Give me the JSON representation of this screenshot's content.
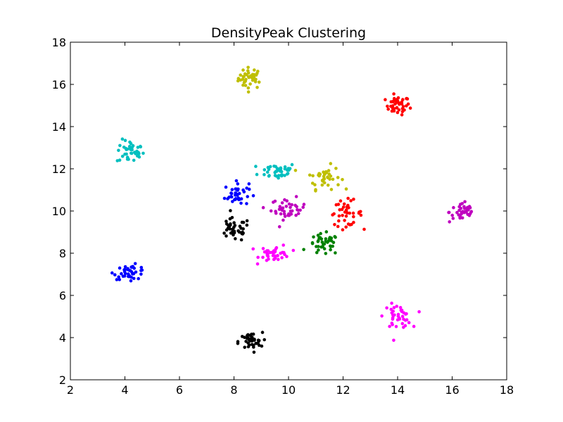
{
  "chart_data": {
    "type": "scatter",
    "title": "DensityPeak Clustering",
    "xlabel": "",
    "ylabel": "",
    "xlim": [
      2,
      18
    ],
    "ylim": [
      2,
      18
    ],
    "xticks": [
      "2",
      "4",
      "6",
      "8",
      "10",
      "12",
      "14",
      "16",
      "18"
    ],
    "yticks": [
      "2",
      "4",
      "6",
      "8",
      "10",
      "12",
      "14",
      "16",
      "18"
    ],
    "grid": false,
    "legend": "none",
    "clusters": [
      {
        "color": "#bfbf00",
        "center": [
          8.6,
          16.3
        ],
        "spread": [
          0.22,
          0.25
        ],
        "count": 40
      },
      {
        "color": "#ff0000",
        "center": [
          14.0,
          15.0
        ],
        "spread": [
          0.22,
          0.22
        ],
        "count": 40
      },
      {
        "color": "#00bfbf",
        "center": [
          4.2,
          12.8
        ],
        "spread": [
          0.25,
          0.28
        ],
        "count": 40
      },
      {
        "color": "#00bfbf",
        "center": [
          9.6,
          11.9
        ],
        "spread": [
          0.35,
          0.2
        ],
        "count": 40
      },
      {
        "color": "#bfbf00",
        "center": [
          11.3,
          11.6
        ],
        "spread": [
          0.3,
          0.28
        ],
        "count": 40
      },
      {
        "color": "#0000ff",
        "center": [
          8.1,
          10.8
        ],
        "spread": [
          0.22,
          0.28
        ],
        "count": 40
      },
      {
        "color": "#bf00bf",
        "center": [
          10.0,
          10.1
        ],
        "spread": [
          0.32,
          0.25
        ],
        "count": 40
      },
      {
        "color": "#ff0000",
        "center": [
          12.1,
          9.9
        ],
        "spread": [
          0.3,
          0.3
        ],
        "count": 40
      },
      {
        "color": "#bf00bf",
        "center": [
          16.4,
          9.95
        ],
        "spread": [
          0.25,
          0.25
        ],
        "count": 40
      },
      {
        "color": "#000000",
        "center": [
          8.0,
          9.1
        ],
        "spread": [
          0.3,
          0.28
        ],
        "count": 40
      },
      {
        "color": "#008000",
        "center": [
          11.3,
          8.4
        ],
        "spread": [
          0.28,
          0.25
        ],
        "count": 40
      },
      {
        "color": "#ff00ff",
        "center": [
          9.5,
          8.0
        ],
        "spread": [
          0.28,
          0.2
        ],
        "count": 40
      },
      {
        "color": "#0000ff",
        "center": [
          4.2,
          7.1
        ],
        "spread": [
          0.3,
          0.17
        ],
        "count": 40
      },
      {
        "color": "#ff00ff",
        "center": [
          14.0,
          5.0
        ],
        "spread": [
          0.25,
          0.28
        ],
        "count": 40
      },
      {
        "color": "#000000",
        "center": [
          8.6,
          3.8
        ],
        "spread": [
          0.22,
          0.22
        ],
        "count": 40
      }
    ]
  }
}
